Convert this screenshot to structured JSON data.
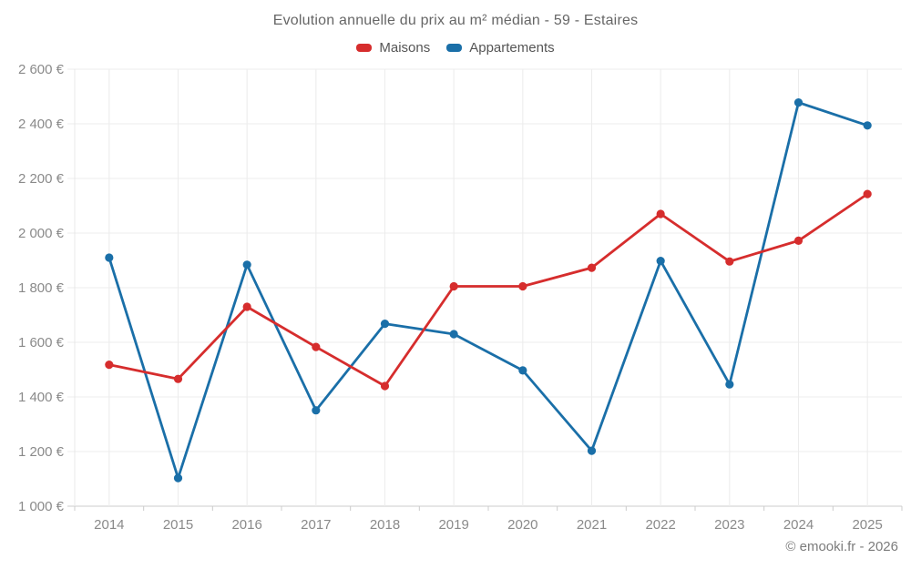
{
  "footer": {
    "credit": "© emooki.fr - 2026"
  },
  "chart_data": {
    "type": "line",
    "title": "Evolution annuelle du prix au m² médian - 59 - Estaires",
    "categories": [
      "2014",
      "2015",
      "2016",
      "2017",
      "2018",
      "2019",
      "2020",
      "2021",
      "2022",
      "2023",
      "2024",
      "2025"
    ],
    "series": [
      {
        "name": "Maisons",
        "color": "#d62d2d",
        "values": [
          1518,
          1466,
          1730,
          1583,
          1440,
          1805,
          1805,
          1873,
          2070,
          1896,
          1972,
          2143
        ]
      },
      {
        "name": "Appartements",
        "color": "#1a6fa8",
        "values": [
          1910,
          1103,
          1884,
          1351,
          1668,
          1630,
          1497,
          1203,
          1898,
          1446,
          2478,
          2394
        ]
      }
    ],
    "ylim": [
      1000,
      2600
    ],
    "ytick_step": 200,
    "yticks": [
      {
        "value": 1000,
        "label": "1 000 €"
      },
      {
        "value": 1200,
        "label": "1 200 €"
      },
      {
        "value": 1400,
        "label": "1 400 €"
      },
      {
        "value": 1600,
        "label": "1 600 €"
      },
      {
        "value": 1800,
        "label": "1 800 €"
      },
      {
        "value": 2000,
        "label": "2 000 €"
      },
      {
        "value": 2200,
        "label": "2 200 €"
      },
      {
        "value": 2400,
        "label": "2 400 €"
      },
      {
        "value": 2600,
        "label": "2 600 €"
      }
    ],
    "grid": true,
    "legend_position": "top"
  }
}
